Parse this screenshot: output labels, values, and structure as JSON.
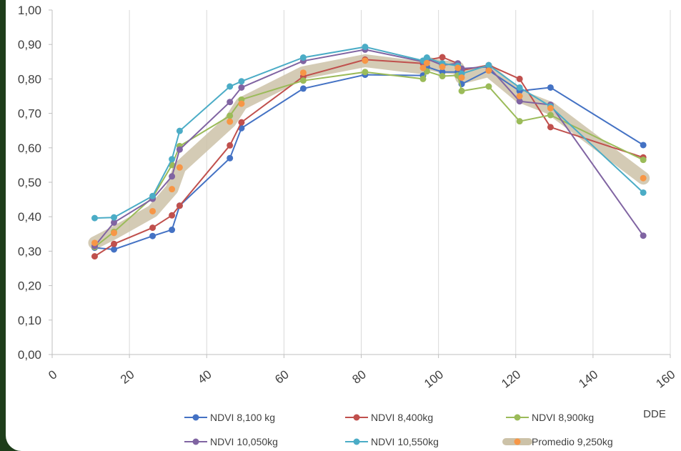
{
  "chart_data": {
    "type": "line",
    "title": "",
    "xlabel": "DDE",
    "ylabel": "",
    "xlim": [
      0,
      160
    ],
    "ylim": [
      0,
      1
    ],
    "x_ticks": [
      "0",
      "20",
      "40",
      "60",
      "80",
      "100",
      "120",
      "140",
      "160"
    ],
    "y_ticks": [
      "0,00",
      "0,10",
      "0,20",
      "0,30",
      "0,40",
      "0,50",
      "0,60",
      "0,70",
      "0,80",
      "0,90",
      "1,00"
    ],
    "grid": "vertical",
    "legend_position": "bottom",
    "series": [
      {
        "name": "NDVI 8,100 kg",
        "color": "#4472c4",
        "points": [
          [
            11,
            0.31
          ],
          [
            16,
            0.305
          ],
          [
            26,
            0.344
          ],
          [
            31,
            0.362
          ],
          [
            33,
            0.432
          ],
          [
            46,
            0.57
          ],
          [
            49,
            0.657
          ],
          [
            65,
            0.772
          ],
          [
            81,
            0.812
          ],
          [
            96,
            0.81
          ],
          [
            97,
            0.835
          ],
          [
            101,
            0.82
          ],
          [
            105,
            0.82
          ],
          [
            106,
            0.785
          ],
          [
            113,
            0.825
          ],
          [
            121,
            0.765
          ],
          [
            129,
            0.775
          ],
          [
            153,
            0.608
          ]
        ]
      },
      {
        "name": "NDVI 8,400kg",
        "color": "#c0504d",
        "points": [
          [
            11,
            0.285
          ],
          [
            16,
            0.321
          ],
          [
            26,
            0.368
          ],
          [
            31,
            0.404
          ],
          [
            33,
            0.432
          ],
          [
            46,
            0.607
          ],
          [
            49,
            0.674
          ],
          [
            65,
            0.807
          ],
          [
            81,
            0.856
          ],
          [
            96,
            0.845
          ],
          [
            97,
            0.855
          ],
          [
            101,
            0.863
          ],
          [
            105,
            0.845
          ],
          [
            106,
            0.825
          ],
          [
            113,
            0.84
          ],
          [
            121,
            0.8
          ],
          [
            129,
            0.66
          ],
          [
            153,
            0.572
          ]
        ]
      },
      {
        "name": "NDVI 8,900kg",
        "color": "#9bbb59",
        "points": [
          [
            11,
            0.312
          ],
          [
            16,
            0.356
          ],
          [
            26,
            0.456
          ],
          [
            31,
            0.55
          ],
          [
            33,
            0.605
          ],
          [
            46,
            0.693
          ],
          [
            49,
            0.74
          ],
          [
            65,
            0.795
          ],
          [
            81,
            0.82
          ],
          [
            96,
            0.8
          ],
          [
            97,
            0.822
          ],
          [
            101,
            0.808
          ],
          [
            105,
            0.81
          ],
          [
            106,
            0.765
          ],
          [
            113,
            0.778
          ],
          [
            121,
            0.677
          ],
          [
            129,
            0.695
          ],
          [
            153,
            0.565
          ]
        ]
      },
      {
        "name": "NDVI 10,050kg",
        "color": "#8064a2",
        "points": [
          [
            11,
            0.315
          ],
          [
            16,
            0.383
          ],
          [
            26,
            0.452
          ],
          [
            31,
            0.517
          ],
          [
            33,
            0.595
          ],
          [
            46,
            0.733
          ],
          [
            49,
            0.775
          ],
          [
            65,
            0.852
          ],
          [
            81,
            0.885
          ],
          [
            96,
            0.85
          ],
          [
            97,
            0.858
          ],
          [
            101,
            0.84
          ],
          [
            105,
            0.845
          ],
          [
            106,
            0.83
          ],
          [
            113,
            0.835
          ],
          [
            121,
            0.735
          ],
          [
            129,
            0.725
          ],
          [
            153,
            0.345
          ]
        ]
      },
      {
        "name": "NDVI 10,550kg",
        "color": "#4bacc6",
        "points": [
          [
            11,
            0.396
          ],
          [
            16,
            0.398
          ],
          [
            26,
            0.46
          ],
          [
            31,
            0.567
          ],
          [
            33,
            0.649
          ],
          [
            46,
            0.778
          ],
          [
            49,
            0.793
          ],
          [
            65,
            0.862
          ],
          [
            81,
            0.893
          ],
          [
            96,
            0.853
          ],
          [
            97,
            0.862
          ],
          [
            101,
            0.845
          ],
          [
            105,
            0.838
          ],
          [
            106,
            0.815
          ],
          [
            113,
            0.84
          ],
          [
            121,
            0.775
          ],
          [
            129,
            0.72
          ],
          [
            153,
            0.47
          ]
        ]
      },
      {
        "name": "Promedio 9,250kg",
        "color": "#f79646",
        "band_color": "#ccc2a8",
        "points": [
          [
            11,
            0.324
          ],
          [
            16,
            0.353
          ],
          [
            26,
            0.416
          ],
          [
            31,
            0.48
          ],
          [
            33,
            0.543
          ],
          [
            46,
            0.676
          ],
          [
            49,
            0.728
          ],
          [
            65,
            0.818
          ],
          [
            81,
            0.853
          ],
          [
            96,
            0.832
          ],
          [
            97,
            0.846
          ],
          [
            101,
            0.835
          ],
          [
            105,
            0.832
          ],
          [
            106,
            0.804
          ],
          [
            113,
            0.824
          ],
          [
            121,
            0.75
          ],
          [
            129,
            0.715
          ],
          [
            153,
            0.512
          ]
        ]
      }
    ]
  }
}
